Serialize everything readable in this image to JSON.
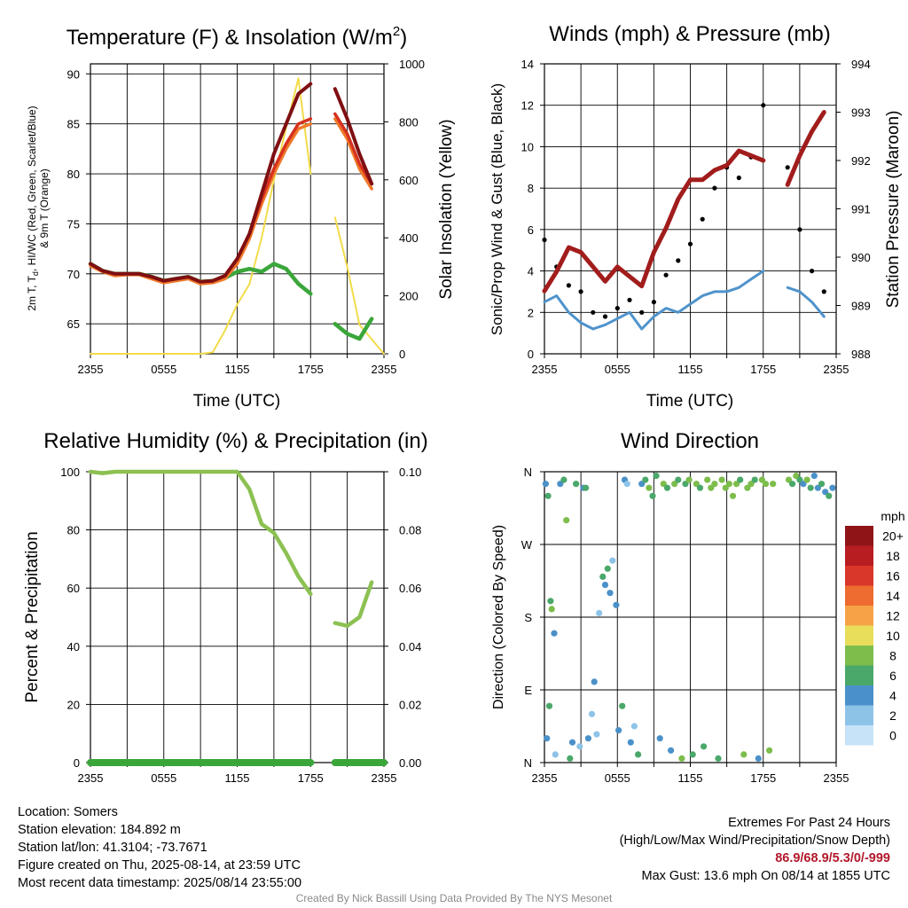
{
  "panels": {
    "temp": {
      "title": "Temperature (F) & Insolation (W/m",
      "title_sup": "2",
      "title_end": ")",
      "ylabel_left_line1": "2m T, T",
      "ylabel_left_sub": "d",
      "ylabel_left_rest": ", HI/WC (Red, Green, Scarlet/Blue)",
      "ylabel_left_line2": "& 9m T (Orange)",
      "ylabel_right": "Solar Insolation (Yellow)",
      "xlabel": "Time (UTC)"
    },
    "wind": {
      "title": "Winds (mph) & Pressure (mb)",
      "ylabel_left": "Sonic/Prop Wind & Gust (Blue, Black)",
      "ylabel_right": "Station Pressure (Maroon)",
      "xlabel": "Time (UTC)"
    },
    "rh": {
      "title": "Relative Humidity (%) & Precipitation (in)",
      "ylabel_left": "Percent & Precipitation"
    },
    "dir": {
      "title": "Wind Direction",
      "ylabel_left": "Direction (Colored By Speed)",
      "legend_title": "mph"
    }
  },
  "chart_data": [
    {
      "type": "line",
      "title": "Temperature (F) & Insolation (W/m2)",
      "xlabel": "Time (UTC)",
      "ylabel": "2m T, Td, HI/WC (Red, Green, Scarlet/Blue) & 9m T (Orange)",
      "y2label": "Solar Insolation (Yellow)",
      "x_ticks": [
        "2355",
        "0555",
        "1155",
        "1755",
        "2355"
      ],
      "ylim": [
        62,
        91
      ],
      "y_ticks": [
        65,
        70,
        75,
        80,
        85,
        90
      ],
      "y2lim": [
        0,
        1000
      ],
      "y2_ticks": [
        0,
        200,
        400,
        600,
        800,
        1000
      ],
      "x_hours": [
        0,
        1,
        2,
        3,
        4,
        5,
        6,
        7,
        8,
        9,
        10,
        11,
        12,
        13,
        14,
        15,
        16,
        17,
        18,
        19,
        20,
        21,
        22,
        23,
        24
      ],
      "series": [
        {
          "color": "#7f0f12",
          "values": [
            71,
            70.3,
            70,
            70,
            70,
            69.7,
            69.3,
            69.5,
            69.7,
            69.2,
            69.3,
            69.8,
            71.5,
            74,
            78,
            82,
            85,
            88,
            89,
            null,
            88.5,
            85.5,
            82,
            79,
            null
          ]
        },
        {
          "color": "#d6311f",
          "values": [
            71,
            70.3,
            70,
            70,
            70,
            69.7,
            69.3,
            69.5,
            69.7,
            69.2,
            69.3,
            69.8,
            71.5,
            74,
            77.5,
            80.5,
            83,
            85,
            85.5,
            null,
            86,
            84,
            81,
            79,
            null
          ]
        },
        {
          "color": "#f0792b",
          "values": [
            70.8,
            70.2,
            69.8,
            69.9,
            69.9,
            69.5,
            69.1,
            69.3,
            69.5,
            69,
            69.1,
            69.5,
            71,
            73.5,
            77,
            80,
            82.5,
            84.5,
            85,
            null,
            85.5,
            83.5,
            80.5,
            78.5,
            null
          ]
        },
        {
          "color": "#3aa63a",
          "values": [
            71,
            70.3,
            70,
            70,
            70,
            69.7,
            69.3,
            69.5,
            69.7,
            69.2,
            69.3,
            69.6,
            70.2,
            70.5,
            70.2,
            71,
            70.5,
            69,
            68,
            null,
            65,
            64,
            63.5,
            65.5,
            null
          ]
        }
      ],
      "insolation": {
        "color": "#f2dc4b",
        "values": [
          0,
          0,
          0,
          0,
          0,
          0,
          0,
          0,
          0,
          0,
          5,
          80,
          170,
          240,
          400,
          600,
          780,
          950,
          620,
          null,
          470,
          300,
          100,
          50,
          0
        ]
      }
    },
    {
      "type": "line",
      "title": "Winds (mph) & Pressure (mb)",
      "xlabel": "Time (UTC)",
      "ylabel": "Sonic/Prop Wind & Gust (Blue, Black)",
      "y2label": "Station Pressure (Maroon)",
      "x_ticks": [
        "2355",
        "0555",
        "1155",
        "1755",
        "2355"
      ],
      "ylim": [
        0,
        14
      ],
      "y_ticks": [
        0,
        2,
        4,
        6,
        8,
        10,
        12,
        14
      ],
      "y2lim": [
        988,
        994
      ],
      "y2_ticks": [
        988,
        989,
        990,
        991,
        992,
        993,
        994
      ],
      "x_hours": [
        0,
        1,
        2,
        3,
        4,
        5,
        6,
        7,
        8,
        9,
        10,
        11,
        12,
        13,
        14,
        15,
        16,
        17,
        18,
        19,
        20,
        21,
        22,
        23,
        24
      ],
      "series": [
        {
          "name": "wind",
          "color": "#4f93cc",
          "values": [
            2.5,
            2.8,
            2,
            1.5,
            1.2,
            1.4,
            1.7,
            2,
            1.2,
            1.8,
            2.2,
            2,
            2.4,
            2.8,
            3,
            3,
            3.2,
            3.6,
            4,
            null,
            3.2,
            3,
            2.5,
            1.8,
            null
          ]
        },
        {
          "name": "gust",
          "color": "#000000",
          "values": [
            5.5,
            4.2,
            3.3,
            3,
            2,
            1.8,
            2.2,
            2.6,
            2,
            2.5,
            3.8,
            4.5,
            5.3,
            6.5,
            8,
            9,
            8.5,
            9.5,
            12,
            null,
            9,
            6,
            4,
            3,
            null
          ]
        },
        {
          "name": "pressure",
          "color": "#a11d1c",
          "values": [
            989.3,
            989.7,
            990.2,
            990.1,
            989.8,
            989.5,
            989.8,
            989.6,
            989.4,
            990.1,
            990.6,
            991.2,
            991.6,
            991.6,
            991.8,
            991.9,
            992.2,
            992.1,
            992,
            null,
            991.5,
            992.1,
            992.6,
            993,
            null
          ]
        }
      ]
    },
    {
      "type": "line",
      "title": "Relative Humidity (%) & Precipitation (in)",
      "xlabel": "",
      "ylabel": "Percent & Precipitation",
      "x_ticks": [
        "2355",
        "0555",
        "1155",
        "1755",
        "2355"
      ],
      "ylim": [
        0,
        100
      ],
      "y_ticks": [
        0,
        20,
        40,
        60,
        80,
        100
      ],
      "y2lim": [
        0,
        0.1
      ],
      "y2_ticks": [
        "0.00",
        "0.02",
        "0.04",
        "0.06",
        "0.08",
        "0.10"
      ],
      "x_hours": [
        0,
        1,
        2,
        3,
        4,
        5,
        6,
        7,
        8,
        9,
        10,
        11,
        12,
        13,
        14,
        15,
        16,
        17,
        18,
        19,
        20,
        21,
        22,
        23,
        24
      ],
      "series": [
        {
          "name": "rh",
          "color": "#8cc152",
          "values": [
            100,
            99.5,
            100,
            100,
            100,
            100,
            100,
            100,
            100,
            100,
            100,
            100,
            100,
            94,
            82,
            79,
            72,
            64,
            58,
            null,
            48,
            47,
            50,
            62,
            null
          ]
        },
        {
          "name": "precip",
          "color": "#3aa63a",
          "values": [
            0,
            0,
            0,
            0,
            0,
            0,
            0,
            0,
            0,
            0,
            0,
            0,
            0,
            0,
            0,
            0,
            0,
            0,
            0,
            null,
            0,
            0,
            0,
            0,
            0
          ]
        }
      ]
    },
    {
      "type": "scatter",
      "title": "Wind Direction",
      "ylabel": "Direction (Colored By Speed)",
      "x_ticks": [
        "2355",
        "0555",
        "1155",
        "1755",
        "2355"
      ],
      "y_ticks": [
        "N",
        "E",
        "S",
        "W",
        "N"
      ],
      "ylim": [
        0,
        360
      ],
      "legend": {
        "title": "mph",
        "labels": [
          "0",
          "2",
          "4",
          "6",
          "8",
          "10",
          "12",
          "14",
          "16",
          "18",
          "20+"
        ],
        "colors": [
          "#c6e3f7",
          "#8ec3e8",
          "#4b91c9",
          "#4aa86a",
          "#7dbd4c",
          "#e8de5a",
          "#f6a347",
          "#ee6c2f",
          "#d9372a",
          "#b81d22",
          "#8f1418"
        ]
      },
      "points_hour_deg_speed": [
        [
          0.1,
          345,
          2
        ],
        [
          0.3,
          330,
          3
        ],
        [
          0.5,
          200,
          3
        ],
        [
          0.6,
          190,
          4
        ],
        [
          0.8,
          160,
          2
        ],
        [
          0.4,
          70,
          3
        ],
        [
          0.2,
          30,
          2
        ],
        [
          0.9,
          10,
          1
        ],
        [
          1.3,
          345,
          2
        ],
        [
          1.6,
          350,
          3
        ],
        [
          1.8,
          300,
          4
        ],
        [
          2.1,
          5,
          3
        ],
        [
          2.3,
          25,
          2
        ],
        [
          2.6,
          345,
          3
        ],
        [
          2.9,
          20,
          1
        ],
        [
          3.2,
          340,
          2
        ],
        [
          3.4,
          340,
          3
        ],
        [
          3.6,
          30,
          2
        ],
        [
          3.9,
          60,
          1
        ],
        [
          4.1,
          100,
          2
        ],
        [
          4.3,
          35,
          1
        ],
        [
          4.5,
          185,
          1
        ],
        [
          4.8,
          230,
          3
        ],
        [
          5,
          220,
          2
        ],
        [
          5.2,
          240,
          3
        ],
        [
          5.4,
          210,
          2
        ],
        [
          5.6,
          250,
          1
        ],
        [
          5.9,
          195,
          2
        ],
        [
          6.1,
          40,
          2
        ],
        [
          6.4,
          70,
          3
        ],
        [
          6.6,
          350,
          2
        ],
        [
          6.8,
          345,
          1
        ],
        [
          7.1,
          25,
          2
        ],
        [
          7.4,
          45,
          1
        ],
        [
          7.7,
          10,
          3
        ],
        [
          8,
          345,
          2
        ],
        [
          8.3,
          350,
          3
        ],
        [
          8.6,
          340,
          4
        ],
        [
          8.9,
          330,
          3
        ],
        [
          9.2,
          355,
          3
        ],
        [
          9.5,
          30,
          2
        ],
        [
          9.8,
          345,
          4
        ],
        [
          10.1,
          340,
          3
        ],
        [
          10.4,
          15,
          2
        ],
        [
          10.7,
          345,
          4
        ],
        [
          11,
          350,
          3
        ],
        [
          11.3,
          5,
          4
        ],
        [
          11.6,
          345,
          3
        ],
        [
          11.9,
          350,
          4
        ],
        [
          12.2,
          10,
          3
        ],
        [
          12.5,
          345,
          4
        ],
        [
          12.8,
          340,
          3
        ],
        [
          13.1,
          20,
          3
        ],
        [
          13.4,
          350,
          4
        ],
        [
          13.7,
          340,
          4
        ],
        [
          14,
          345,
          4
        ],
        [
          14.3,
          5,
          3
        ],
        [
          14.6,
          350,
          4
        ],
        [
          14.9,
          340,
          4
        ],
        [
          15.2,
          345,
          4
        ],
        [
          15.5,
          330,
          4
        ],
        [
          15.8,
          345,
          4
        ],
        [
          16.1,
          350,
          3
        ],
        [
          16.4,
          10,
          4
        ],
        [
          16.7,
          340,
          4
        ],
        [
          17,
          345,
          4
        ],
        [
          17.3,
          350,
          3
        ],
        [
          17.6,
          5,
          2
        ],
        [
          17.9,
          350,
          4
        ],
        [
          18.2,
          345,
          4
        ],
        [
          18.5,
          15,
          4
        ],
        [
          18.8,
          345,
          4
        ],
        [
          20.1,
          350,
          4
        ],
        [
          20.4,
          345,
          3
        ],
        [
          20.7,
          355,
          4
        ],
        [
          21,
          350,
          3
        ],
        [
          21.3,
          345,
          2
        ],
        [
          21.6,
          350,
          4
        ],
        [
          21.9,
          340,
          3
        ],
        [
          22.2,
          355,
          2
        ],
        [
          22.5,
          340,
          2
        ],
        [
          22.8,
          345,
          3
        ],
        [
          23.1,
          335,
          2
        ],
        [
          23.4,
          330,
          3
        ],
        [
          23.7,
          340,
          2
        ]
      ]
    }
  ],
  "footer": {
    "location": "Location: Somers",
    "elevation": "Station elevation: 184.892 m",
    "latlon": "Station lat/lon: 41.3104; -73.7671",
    "created": "Figure created on Thu, 2025-08-14, at 23:59 UTC",
    "recent": "Most recent data timestamp: 2025/08/14 23:55:00",
    "extremes_title": "Extremes For Past 24 Hours",
    "extremes_sub": "(High/Low/Max Wind/Precipitation/Snow Depth)",
    "extremes_values": "86.9/68.9/5.3/0/-999",
    "max_gust": "Max Gust: 13.6 mph On 08/14 at 1855 UTC",
    "credit": "Created By Nick Bassill Using Data Provided By The NYS Mesonet"
  }
}
